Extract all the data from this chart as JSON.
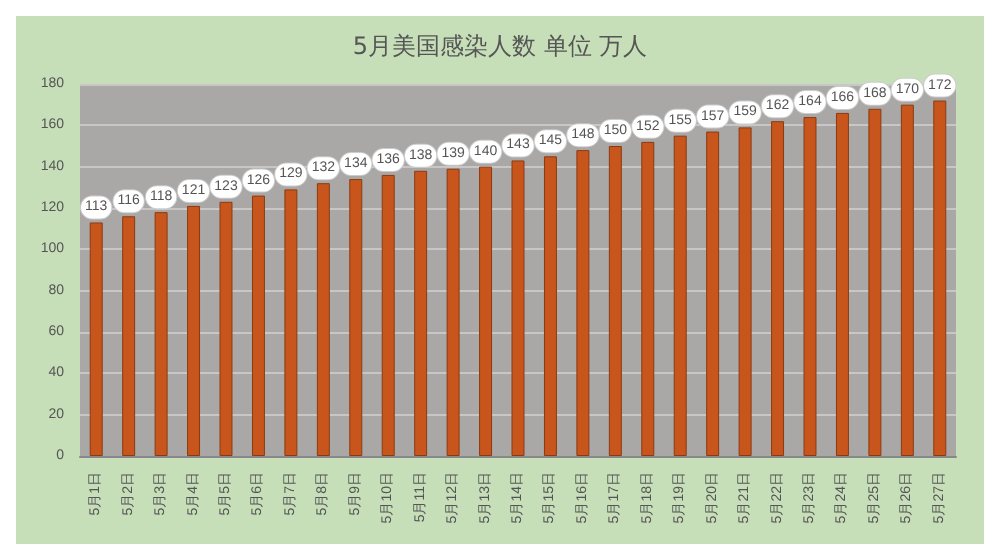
{
  "chart_data": {
    "type": "bar",
    "title": "5月美国感染人数 单位 万人",
    "categories": [
      "5月1日",
      "5月2日",
      "5月3日",
      "5月4日",
      "5月5日",
      "5月6日",
      "5月7日",
      "5月8日",
      "5月9日",
      "5月10日",
      "5月11日",
      "5月12日",
      "5月13日",
      "5月14日",
      "5月15日",
      "5月16日",
      "5月17日",
      "5月18日",
      "5月19日",
      "5月20日",
      "5月21日",
      "5月22日",
      "5月23日",
      "5月24日",
      "5月25日",
      "5月26日",
      "5月27日"
    ],
    "values": [
      113,
      116,
      118,
      121,
      123,
      126,
      129,
      132,
      134,
      136,
      138,
      139,
      140,
      143,
      145,
      148,
      150,
      152,
      155,
      157,
      159,
      162,
      164,
      166,
      168,
      170,
      172
    ],
    "color": "#c8561c",
    "ylim": [
      0,
      180
    ],
    "yticks": [
      0,
      20,
      40,
      60,
      80,
      100,
      120,
      140,
      160,
      180
    ],
    "grid": "y",
    "data_labels": true
  }
}
